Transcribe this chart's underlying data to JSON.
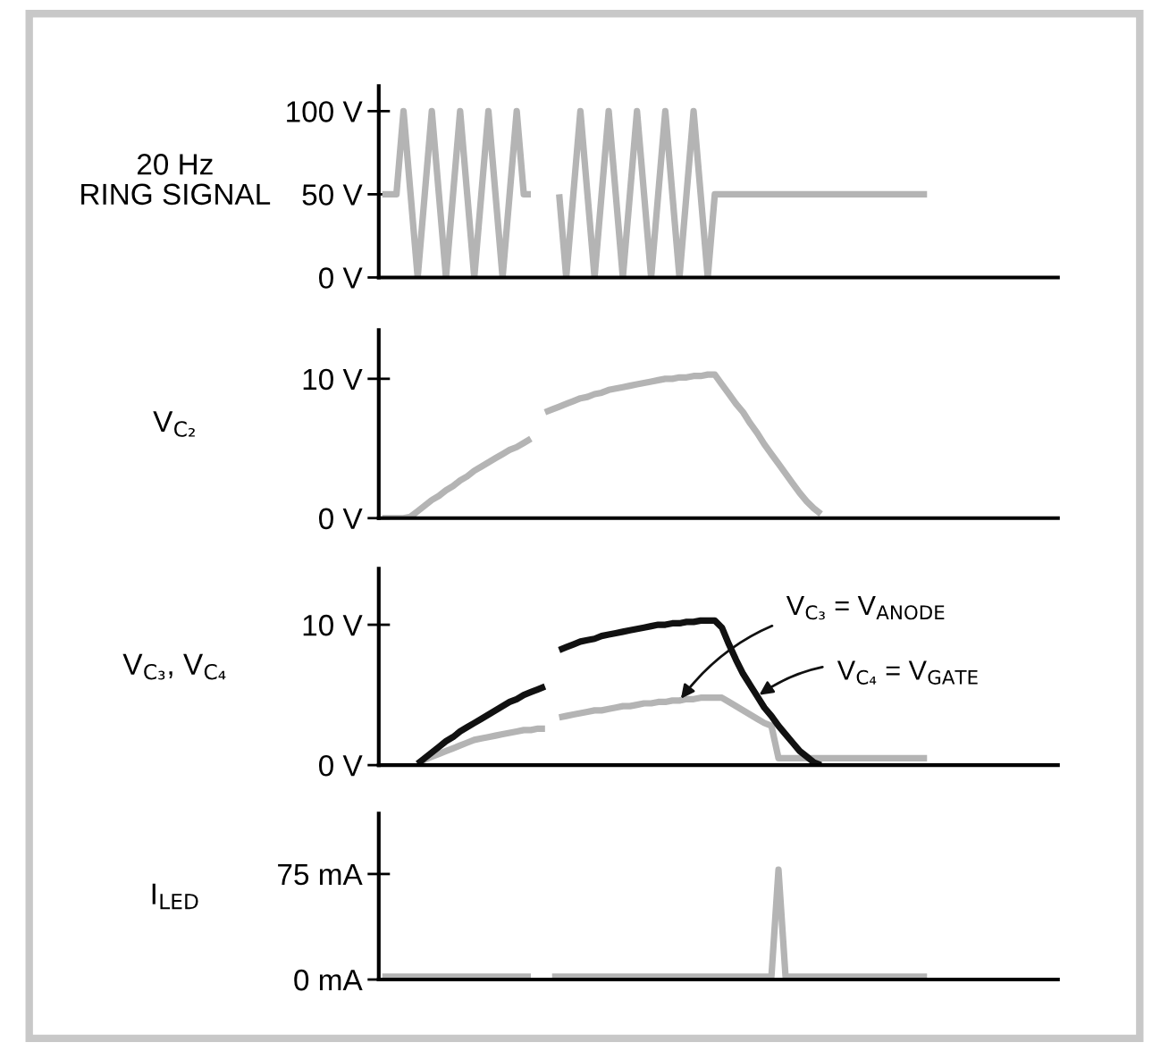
{
  "chart_data": [
    {
      "type": "line",
      "ylabel": "20 Hz\nRING SIGNAL",
      "tick_labels": "y",
      "categories": [
        null,
        null,
        null,
        null,
        null,
        null,
        null,
        null,
        null,
        null,
        null,
        null,
        null,
        null,
        null,
        null,
        null,
        null,
        null,
        null,
        null,
        null,
        null,
        null,
        null,
        null,
        null,
        null,
        null,
        null,
        null,
        null,
        null,
        null,
        null,
        null,
        null,
        null,
        null,
        null,
        null,
        null,
        null,
        null,
        null,
        null,
        null,
        null,
        null,
        null,
        null,
        null,
        null,
        null,
        null,
        null,
        null,
        null,
        null,
        null,
        null,
        null,
        null,
        null,
        null,
        null,
        null,
        null,
        null,
        null,
        null,
        null,
        null,
        null,
        null,
        null,
        null,
        null,
        null,
        null,
        null,
        null,
        null,
        null,
        null,
        null,
        null,
        null,
        null,
        null,
        null,
        null,
        null,
        null,
        null,
        null
      ],
      "series": [
        {
          "color": "#b4b4b4",
          "values": [
            50,
            50,
            50,
            100,
            50,
            0,
            50,
            100,
            50,
            0,
            50,
            100,
            50,
            0,
            50,
            100,
            50,
            0,
            50,
            100,
            50,
            50,
            null,
            null,
            null,
            null,
            null,
            null,
            null,
            null,
            null,
            null,
            null,
            null,
            null,
            null,
            null,
            null,
            null,
            null,
            null,
            null,
            null,
            null,
            null,
            null,
            null,
            null,
            null,
            null,
            null,
            null,
            null,
            null,
            null,
            null,
            null,
            null,
            null,
            null,
            null,
            null,
            null,
            null,
            null,
            null,
            null,
            null,
            null,
            null,
            null,
            null,
            null,
            null,
            null,
            null,
            null,
            null,
            null,
            null,
            null,
            null,
            null,
            null,
            null,
            null,
            null,
            null,
            null,
            null,
            null,
            null,
            null,
            null,
            null,
            null
          ]
        },
        {
          "color": "#b4b4b4",
          "values": [
            null,
            null,
            null,
            null,
            null,
            null,
            null,
            null,
            null,
            null,
            null,
            null,
            null,
            null,
            null,
            null,
            null,
            null,
            null,
            null,
            null,
            null,
            null,
            null,
            null,
            50,
            0,
            50,
            100,
            50,
            0,
            50,
            100,
            50,
            0,
            50,
            100,
            50,
            0,
            50,
            100,
            50,
            0,
            50,
            100,
            50,
            0,
            50,
            50,
            50,
            50,
            50,
            50,
            50,
            50,
            50,
            50,
            50,
            50,
            50,
            50,
            50,
            50,
            50,
            50,
            50,
            50,
            50,
            50,
            50,
            50,
            50,
            50,
            50,
            50,
            50,
            50,
            50,
            null,
            null,
            null,
            null,
            null,
            null,
            null,
            null,
            null,
            null,
            null,
            null,
            null,
            null,
            null,
            null,
            null,
            null
          ]
        }
      ],
      "ylim": [
        0,
        115
      ],
      "yticks": [
        {
          "value": 0,
          "label": "0 V"
        },
        {
          "value": 50,
          "label": "50 V"
        },
        {
          "value": 100,
          "label": "100 V"
        }
      ]
    },
    {
      "type": "line",
      "ylabel": "V$_{C₂}$",
      "tick_labels": "y",
      "color": "#b4b4b4",
      "categories": [
        null,
        null,
        null,
        null,
        null,
        null,
        null,
        null,
        null,
        null,
        null,
        null,
        null,
        null,
        null,
        null,
        null,
        null,
        null,
        null,
        null,
        null,
        null,
        null,
        null,
        null,
        null,
        null,
        null,
        null,
        null,
        null,
        null,
        null,
        null,
        null,
        null,
        null,
        null,
        null,
        null,
        null,
        null,
        null,
        null,
        null,
        null,
        null,
        null,
        null,
        null,
        null,
        null,
        null,
        null,
        null,
        null,
        null,
        null,
        null,
        null,
        null,
        null,
        null,
        null,
        null,
        null,
        null,
        null,
        null,
        null,
        null,
        null,
        null,
        null,
        null,
        null,
        null,
        null,
        null,
        null,
        null,
        null,
        null,
        null,
        null,
        null,
        null,
        null,
        null,
        null,
        null,
        null,
        null,
        null,
        null
      ],
      "values": [
        0,
        0,
        0,
        0,
        0.1,
        0.5,
        0.9,
        1.3,
        1.6,
        2.0,
        2.3,
        2.7,
        3.0,
        3.4,
        3.7,
        4.0,
        4.3,
        4.6,
        4.9,
        5.1,
        5.4,
        5.7,
        null,
        7.6,
        7.8,
        8.0,
        8.2,
        8.4,
        8.6,
        8.7,
        8.9,
        9.0,
        9.2,
        9.3,
        9.4,
        9.5,
        9.6,
        9.7,
        9.8,
        9.9,
        10.0,
        10.0,
        10.1,
        10.1,
        10.2,
        10.2,
        10.3,
        10.3,
        9.6,
        8.9,
        8.2,
        7.6,
        6.8,
        6.1,
        5.3,
        4.6,
        3.9,
        3.2,
        2.5,
        1.8,
        1.2,
        0.7,
        0.3,
        null,
        null,
        null,
        null,
        null,
        null,
        null,
        null,
        null,
        null,
        null,
        null,
        null,
        null,
        null,
        null,
        null,
        null,
        null,
        null,
        null,
        null,
        null,
        null,
        null,
        null,
        null,
        null,
        null,
        null,
        null,
        null,
        null
      ],
      "ylim": [
        0,
        13.5
      ],
      "yticks": [
        {
          "value": 0,
          "label": "0 V"
        },
        {
          "value": 10,
          "label": "10 V"
        }
      ]
    },
    {
      "type": "line",
      "ylabel": "V$_{C₃}$, V$_{C₄}$",
      "tick_labels": "y",
      "categories": [
        null,
        null,
        null,
        null,
        null,
        null,
        null,
        null,
        null,
        null,
        null,
        null,
        null,
        null,
        null,
        null,
        null,
        null,
        null,
        null,
        null,
        null,
        null,
        null,
        null,
        null,
        null,
        null,
        null,
        null,
        null,
        null,
        null,
        null,
        null,
        null,
        null,
        null,
        null,
        null,
        null,
        null,
        null,
        null,
        null,
        null,
        null,
        null,
        null,
        null,
        null,
        null,
        null,
        null,
        null,
        null,
        null,
        null,
        null,
        null,
        null,
        null,
        null,
        null,
        null,
        null,
        null,
        null,
        null,
        null,
        null,
        null,
        null,
        null,
        null,
        null,
        null,
        null,
        null,
        null,
        null,
        null,
        null,
        null,
        null,
        null,
        null,
        null,
        null,
        null,
        null,
        null,
        null,
        null,
        null,
        null
      ],
      "series": [
        {
          "name": "V$_{C₃}$ = V$_{ANODE}$",
          "color": "#b4b4b4",
          "values": [
            null,
            null,
            null,
            null,
            null,
            0.1,
            0.4,
            0.6,
            0.8,
            1.0,
            1.2,
            1.4,
            1.6,
            1.8,
            1.9,
            2.0,
            2.1,
            2.2,
            2.3,
            2.4,
            2.5,
            2.5,
            2.6,
            2.6,
            null,
            3.4,
            3.5,
            3.6,
            3.7,
            3.8,
            3.9,
            3.9,
            4.0,
            4.1,
            4.2,
            4.2,
            4.3,
            4.4,
            4.4,
            4.5,
            4.5,
            4.6,
            4.6,
            4.7,
            4.7,
            4.8,
            4.8,
            4.8,
            4.8,
            4.5,
            4.2,
            3.9,
            3.6,
            3.3,
            3.0,
            2.8,
            0.5,
            0.5,
            0.5,
            0.5,
            0.5,
            0.5,
            0.5,
            0.5,
            0.5,
            0.5,
            0.5,
            0.5,
            0.5,
            0.5,
            0.5,
            0.5,
            0.5,
            0.5,
            0.5,
            0.5,
            0.5,
            0.5,
            null,
            null,
            null,
            null,
            null,
            null,
            null,
            null,
            null,
            null,
            null,
            null,
            null,
            null,
            null,
            null,
            null,
            null
          ]
        },
        {
          "name": "V$_{C₄}$ = V$_{GATE}$",
          "color": "#111111",
          "values": [
            null,
            null,
            null,
            null,
            null,
            0.1,
            0.5,
            0.9,
            1.3,
            1.7,
            2.0,
            2.4,
            2.7,
            3.0,
            3.3,
            3.6,
            3.9,
            4.2,
            4.5,
            4.7,
            5.0,
            5.2,
            5.4,
            5.6,
            null,
            8.2,
            8.4,
            8.6,
            8.8,
            8.9,
            9.0,
            9.2,
            9.3,
            9.4,
            9.5,
            9.6,
            9.7,
            9.8,
            9.9,
            10.0,
            10.0,
            10.1,
            10.1,
            10.2,
            10.2,
            10.3,
            10.3,
            10.3,
            9.8,
            8.6,
            7.5,
            6.5,
            5.7,
            4.9,
            4.1,
            3.5,
            2.8,
            2.2,
            1.6,
            1.0,
            0.6,
            0.2,
            0.0,
            null,
            null,
            null,
            null,
            null,
            null,
            null,
            null,
            null,
            null,
            null,
            null,
            null,
            null,
            null,
            null,
            null,
            null,
            null,
            null,
            null,
            null,
            null,
            null,
            null,
            null,
            null,
            null,
            null,
            null,
            null,
            null,
            null
          ]
        }
      ],
      "ylim": [
        0,
        14
      ],
      "yticks": [
        {
          "value": 0,
          "label": "0 V"
        },
        {
          "value": 10,
          "label": "10 V"
        }
      ]
    },
    {
      "type": "line",
      "ylabel": "I$_{LED}$",
      "tick_labels": "y",
      "color": "#b4b4b4",
      "categories": [
        null,
        null,
        null,
        null,
        null,
        null,
        null,
        null,
        null,
        null,
        null,
        null,
        null,
        null,
        null,
        null,
        null,
        null,
        null,
        null,
        null,
        null,
        null,
        null,
        null,
        null,
        null,
        null,
        null,
        null,
        null,
        null,
        null,
        null,
        null,
        null,
        null,
        null,
        null,
        null,
        null,
        null,
        null,
        null,
        null,
        null,
        null,
        null,
        null,
        null,
        null,
        null,
        null,
        null,
        null,
        null,
        null,
        null,
        null,
        null,
        null,
        null,
        null,
        null,
        null,
        null,
        null,
        null,
        null,
        null,
        null,
        null,
        null,
        null,
        null,
        null,
        null,
        null,
        null,
        null,
        null,
        null,
        null,
        null,
        null,
        null,
        null,
        null,
        null,
        null,
        null,
        null,
        null,
        null,
        null,
        null
      ],
      "values": [
        2,
        2,
        2,
        2,
        2,
        2,
        2,
        2,
        2,
        2,
        2,
        2,
        2,
        2,
        2,
        2,
        2,
        2,
        2,
        2,
        2,
        2,
        null,
        null,
        2,
        2,
        2,
        2,
        2,
        2,
        2,
        2,
        2,
        2,
        2,
        2,
        2,
        2,
        2,
        2,
        2,
        2,
        2,
        2,
        2,
        2,
        2,
        2,
        2,
        2,
        2,
        2,
        2,
        2,
        2,
        2,
        78,
        2,
        2,
        2,
        2,
        2,
        2,
        2,
        2,
        2,
        2,
        2,
        2,
        2,
        2,
        2,
        2,
        2,
        2,
        2,
        2,
        2,
        null,
        null,
        null,
        null,
        null,
        null,
        null,
        null,
        null,
        null,
        null,
        null,
        null,
        null,
        null,
        null,
        null,
        null
      ],
      "ylim": [
        0,
        118
      ],
      "yticks": [
        {
          "value": 0,
          "label": "0 mA"
        },
        {
          "value": 75,
          "label": "75 mA"
        }
      ]
    }
  ]
}
